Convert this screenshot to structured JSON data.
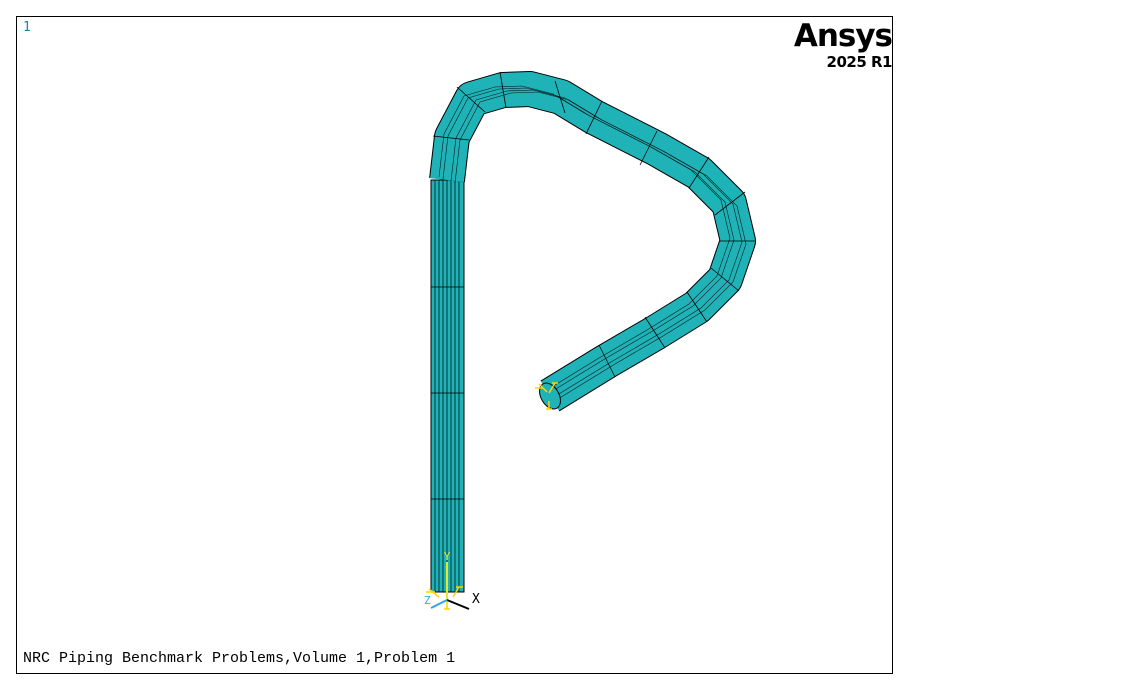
{
  "window": {
    "number": "1"
  },
  "logo": {
    "brand": "Ansys",
    "version": "2025 R1"
  },
  "caption": "NRC Piping Benchmark Problems,Volume 1,Problem 1",
  "triad": {
    "x_label": "X",
    "y_label": "Y",
    "z_label": "Z"
  },
  "colors": {
    "pipe_fill": "#1fb3b8",
    "mesh_line": "#000000",
    "constraint": "#ffd400",
    "window_number": "#0a8fa0",
    "triad_y": "#e6e62a",
    "triad_z": "#2aa7e6"
  }
}
